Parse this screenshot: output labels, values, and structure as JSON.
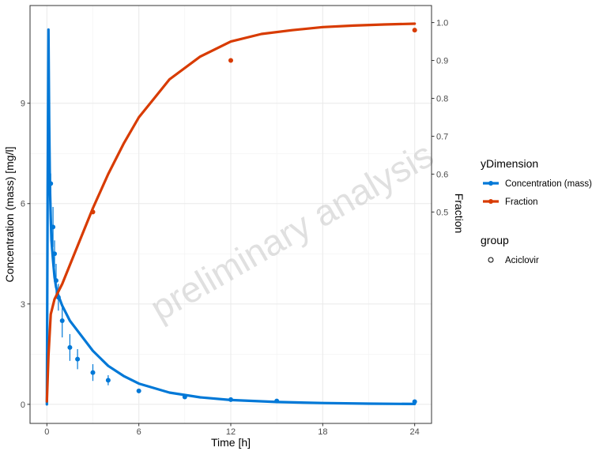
{
  "chart_data": {
    "type": "line",
    "title": "",
    "xlabel": "Time [h]",
    "ylabel": "Concentration (mass) [mg/l]",
    "y2label": "Fraction",
    "xlim": [
      -1.1,
      25.1
    ],
    "ylim": [
      -0.57,
      11.92
    ],
    "y2lim": [
      -0.058,
      1.045
    ],
    "x_ticks": [
      0,
      6,
      12,
      18,
      24
    ],
    "y_ticks": [
      0,
      3,
      6,
      9
    ],
    "y2_ticks": [
      0.5,
      0.6,
      0.7,
      0.8,
      0.9,
      1.0
    ],
    "grid": true,
    "watermark": "preliminary analysis",
    "legend": {
      "position": "right",
      "color_title": "yDimension",
      "color_entries": [
        {
          "name": "Concentration (mass)",
          "color": "#0078D7"
        },
        {
          "name": "Fraction",
          "color": "#D83B01"
        }
      ],
      "shape_title": "group",
      "shape_entries": [
        {
          "name": "Aciclovir"
        }
      ]
    },
    "series": [
      {
        "name": "Concentration (mass)",
        "axis": "left",
        "color": "#0078D7",
        "line": {
          "x": [
            0,
            0.05,
            0.1,
            0.15,
            0.2,
            0.25,
            0.3,
            0.4,
            0.5,
            0.6,
            0.75,
            1,
            1.5,
            2,
            3,
            4,
            5,
            6,
            8,
            10,
            12,
            15,
            18,
            21,
            24
          ],
          "y": [
            0,
            6.5,
            11.2,
            8.5,
            6.5,
            5.6,
            4.9,
            4.3,
            3.8,
            3.5,
            3.25,
            2.95,
            2.5,
            2.2,
            1.6,
            1.15,
            0.85,
            0.62,
            0.35,
            0.21,
            0.13,
            0.07,
            0.04,
            0.02,
            0.01
          ]
        },
        "points": {
          "x": [
            0.25,
            0.4,
            0.5,
            0.6,
            0.75,
            1,
            1.5,
            2,
            3,
            4,
            6,
            9,
            12,
            15,
            24
          ],
          "y": [
            6.6,
            5.3,
            4.5,
            3.7,
            3.2,
            2.5,
            1.7,
            1.35,
            0.95,
            0.72,
            0.4,
            0.22,
            0.14,
            0.1,
            0.08
          ],
          "err": [
            0.3,
            0.6,
            0.4,
            0.5,
            0.4,
            0.5,
            0.4,
            0.3,
            0.25,
            0.15,
            0.05,
            0.02,
            0.02,
            0.01,
            0.03
          ]
        }
      },
      {
        "name": "Fraction",
        "axis": "right",
        "color": "#D83B01",
        "line": {
          "x": [
            0,
            0.1,
            0.25,
            0.5,
            1,
            1.5,
            2,
            3,
            4,
            5,
            6,
            7,
            8,
            10,
            12,
            14,
            16,
            18,
            20,
            22,
            24
          ],
          "y": [
            0,
            0.12,
            0.23,
            0.27,
            0.31,
            0.36,
            0.41,
            0.51,
            0.6,
            0.68,
            0.75,
            0.8,
            0.85,
            0.91,
            0.95,
            0.97,
            0.98,
            0.988,
            0.992,
            0.995,
            0.997
          ]
        },
        "points": {
          "x": [
            3,
            12,
            24
          ],
          "y": [
            0.5,
            0.9,
            0.98
          ]
        }
      }
    ]
  }
}
